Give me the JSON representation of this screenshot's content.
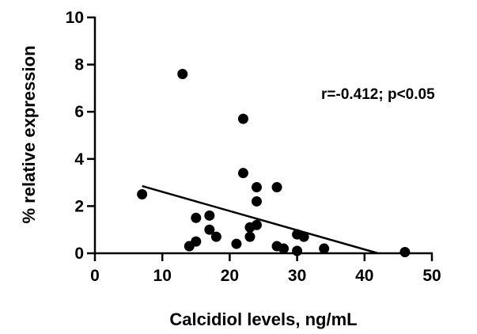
{
  "chart_data": {
    "type": "scatter",
    "xlabel": "Calcidiol levels, ng/mL",
    "ylabel": "% relative expression",
    "xlim": [
      0,
      50
    ],
    "ylim": [
      0,
      10
    ],
    "x_ticks": [
      0,
      10,
      20,
      30,
      40,
      50
    ],
    "y_ticks": [
      0,
      2,
      4,
      6,
      8,
      10
    ],
    "x_tick_labels": [
      "0",
      "10",
      "20",
      "30",
      "40",
      "50"
    ],
    "y_tick_labels": [
      "0",
      "2",
      "4",
      "6",
      "8",
      "10"
    ],
    "grid": false,
    "annotation": "r=-0.412; p<0.05",
    "points": [
      {
        "x": 7,
        "y": 2.5
      },
      {
        "x": 13,
        "y": 7.6
      },
      {
        "x": 14,
        "y": 0.3
      },
      {
        "x": 15,
        "y": 1.5
      },
      {
        "x": 15,
        "y": 0.5
      },
      {
        "x": 17,
        "y": 1.6
      },
      {
        "x": 17,
        "y": 1.0
      },
      {
        "x": 18,
        "y": 0.7
      },
      {
        "x": 21,
        "y": 0.4
      },
      {
        "x": 22,
        "y": 5.7
      },
      {
        "x": 22,
        "y": 3.4
      },
      {
        "x": 23,
        "y": 1.1
      },
      {
        "x": 23,
        "y": 0.7
      },
      {
        "x": 24,
        "y": 2.8
      },
      {
        "x": 24,
        "y": 2.2
      },
      {
        "x": 24,
        "y": 1.2
      },
      {
        "x": 27,
        "y": 2.8
      },
      {
        "x": 27,
        "y": 0.3
      },
      {
        "x": 28,
        "y": 0.2
      },
      {
        "x": 30,
        "y": 0.8
      },
      {
        "x": 30,
        "y": 0.1
      },
      {
        "x": 31,
        "y": 0.7
      },
      {
        "x": 34,
        "y": 0.2
      },
      {
        "x": 46,
        "y": 0.05
      }
    ],
    "trendline": {
      "x": [
        7,
        42
      ],
      "y": [
        2.85,
        0
      ]
    }
  }
}
